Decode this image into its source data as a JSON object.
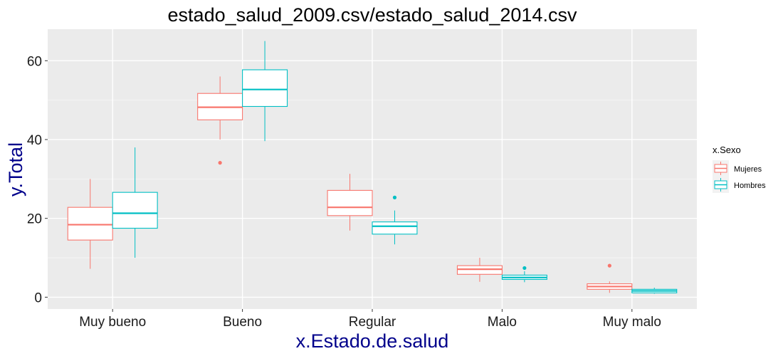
{
  "chart_data": {
    "type": "boxplot",
    "title": "estado_salud_2009.csv/estado_salud_2014.csv",
    "xlabel": "x.Estado.de.salud",
    "ylabel": "y.Total",
    "ylim": [
      -3,
      68
    ],
    "yticks": [
      0,
      20,
      40,
      60
    ],
    "grid": true,
    "legend": {
      "title": "x.Sexo",
      "placement": "right"
    },
    "categories": [
      "Muy bueno",
      "Bueno",
      "Regular",
      "Malo",
      "Muy malo"
    ],
    "series": [
      {
        "name": "Mujeres",
        "color": "#f8766d",
        "boxes": [
          {
            "whisker_low": 7.2,
            "q1": 14.5,
            "median": 18.4,
            "q3": 22.8,
            "whisker_high": 30.0,
            "outliers": []
          },
          {
            "whisker_low": 40.0,
            "q1": 45.0,
            "median": 48.2,
            "q3": 51.7,
            "whisker_high": 56.0,
            "outliers": [
              34.1
            ]
          },
          {
            "whisker_low": 16.9,
            "q1": 20.7,
            "median": 22.8,
            "q3": 27.1,
            "whisker_high": 31.3,
            "outliers": []
          },
          {
            "whisker_low": 3.9,
            "q1": 5.8,
            "median": 7.1,
            "q3": 8.0,
            "whisker_high": 10.0,
            "outliers": []
          },
          {
            "whisker_low": 1.1,
            "q1": 2.0,
            "median": 2.7,
            "q3": 3.4,
            "whisker_high": 4.0,
            "outliers": [
              8.0
            ]
          }
        ]
      },
      {
        "name": "Hombres",
        "color": "#00bfc4",
        "boxes": [
          {
            "whisker_low": 10.0,
            "q1": 17.5,
            "median": 21.3,
            "q3": 26.6,
            "whisker_high": 38.0,
            "outliers": []
          },
          {
            "whisker_low": 39.6,
            "q1": 48.4,
            "median": 52.7,
            "q3": 57.7,
            "whisker_high": 65.0,
            "outliers": []
          },
          {
            "whisker_low": 13.4,
            "q1": 16.0,
            "median": 18.0,
            "q3": 19.1,
            "whisker_high": 22.0,
            "outliers": [
              25.3
            ]
          },
          {
            "whisker_low": 3.8,
            "q1": 4.5,
            "median": 5.0,
            "q3": 5.6,
            "whisker_high": 6.6,
            "outliers": [
              7.4
            ]
          },
          {
            "whisker_low": 0.9,
            "q1": 1.1,
            "median": 1.6,
            "q3": 2.0,
            "whisker_high": 2.4,
            "outliers": []
          }
        ]
      }
    ]
  }
}
